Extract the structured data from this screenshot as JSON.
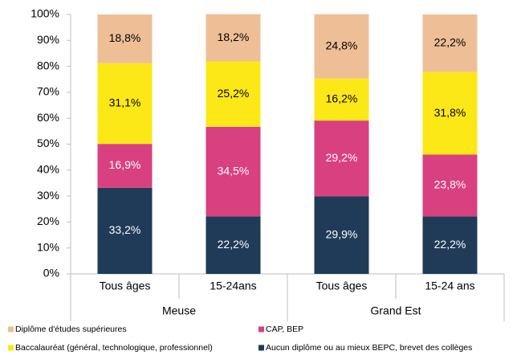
{
  "chart_data": {
    "type": "stacked_bar",
    "categories": [
      "Tous âges",
      "15-24ans",
      "Tous âges",
      "15-24 ans"
    ],
    "groups": [
      "Meuse",
      "Grand Est"
    ],
    "series": [
      {
        "name": "Aucun diplôme ou au mieux BEPC, brevet des collèges",
        "color": "#1f3b57",
        "values": [
          33.2,
          22.2,
          29.9,
          22.2
        ],
        "value_labels": [
          "33,2%",
          "22,2%",
          "29,9%",
          "22,2%"
        ]
      },
      {
        "name": "CAP, BEP",
        "color": "#d9407f",
        "values": [
          16.9,
          34.5,
          29.2,
          23.8
        ],
        "value_labels": [
          "16,9%",
          "34,5%",
          "29,2%",
          "23,8%"
        ]
      },
      {
        "name": "Baccalauréat (général, technologique, professionnel)",
        "color": "#fde817",
        "values": [
          31.1,
          25.2,
          16.2,
          31.8
        ],
        "value_labels": [
          "31,1%",
          "25,2%",
          "16,2%",
          "31,8%"
        ]
      },
      {
        "name": "Diplôme d'études supérieures",
        "color": "#eebf96",
        "values": [
          18.8,
          18.2,
          24.8,
          22.2
        ],
        "value_labels": [
          "18,8%",
          "18,2%",
          "24,8%",
          "22,2%"
        ]
      }
    ],
    "ylim": [
      0,
      100
    ],
    "yticks": [
      {
        "value": 0,
        "label": "0%"
      },
      {
        "value": 10,
        "label": "10%"
      },
      {
        "value": 20,
        "label": "20%"
      },
      {
        "value": 30,
        "label": "30%"
      },
      {
        "value": 40,
        "label": "40%"
      },
      {
        "value": 50,
        "label": "50%"
      },
      {
        "value": 60,
        "label": "60%"
      },
      {
        "value": 70,
        "label": "70%"
      },
      {
        "value": 80,
        "label": "80%"
      },
      {
        "value": 90,
        "label": "90%"
      },
      {
        "value": 100,
        "label": "100%"
      }
    ],
    "grid": false
  }
}
